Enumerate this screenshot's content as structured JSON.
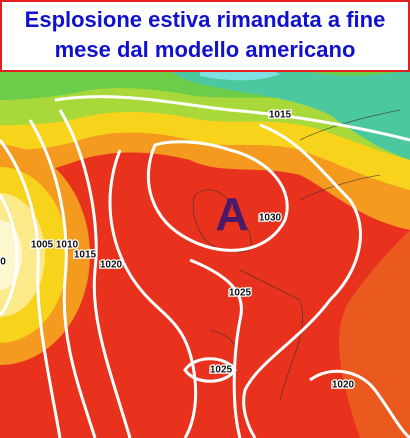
{
  "title": {
    "lines": [
      "Esplosione estiva rimandata a fine",
      "mese dal modello americano"
    ]
  },
  "high_label": "A",
  "isobar_labels": [
    "1015",
    "1030",
    "1005",
    "1010",
    "1015",
    "1020",
    "1025",
    "1025",
    "1020",
    "0"
  ]
}
